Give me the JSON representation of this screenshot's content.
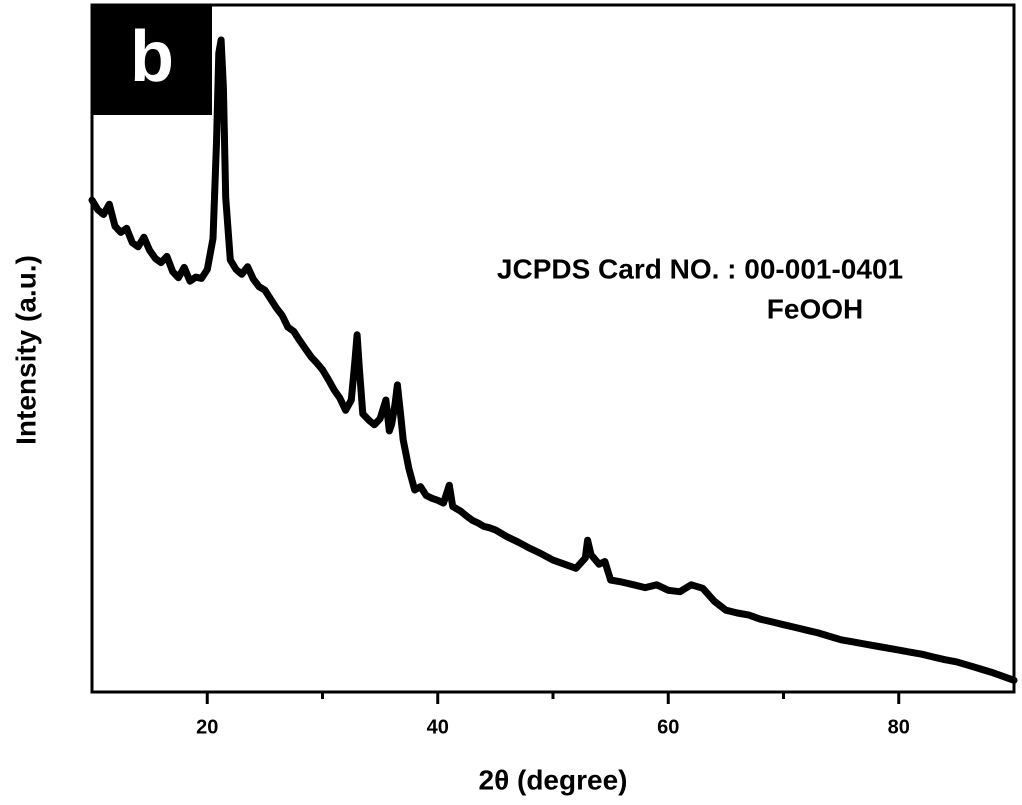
{
  "chart_data": {
    "type": "line",
    "panel_label": "b",
    "xlabel": "2θ (degree)",
    "ylabel": "Intensity (a.u.)",
    "annotations": [
      "JCPDS Card NO. : 00-001-0401",
      "FeOOH"
    ],
    "xlim": [
      10,
      90
    ],
    "xticks": [
      20,
      40,
      60,
      80
    ],
    "x_minor_ticks": [
      30,
      50,
      70
    ],
    "ylim": [
      0,
      100
    ],
    "color": "#000000",
    "x": [
      10,
      10.5,
      11,
      11.5,
      12,
      12.5,
      13,
      13.5,
      14,
      14.5,
      15,
      15.5,
      16,
      16.5,
      17,
      17.5,
      18,
      18.5,
      19,
      19.5,
      20,
      20.5,
      20.8,
      21,
      21.2,
      21.4,
      21.6,
      22,
      22.5,
      23,
      23.5,
      24,
      24.5,
      25,
      25.5,
      26,
      26.5,
      27,
      27.5,
      28,
      28.5,
      29,
      29.5,
      30,
      30.5,
      31,
      31.5,
      32,
      32.5,
      32.8,
      33,
      33.2,
      33.5,
      34,
      34.5,
      35,
      35.5,
      35.8,
      36,
      36.3,
      36.5,
      36.8,
      37,
      37.5,
      38,
      38.5,
      39,
      39.5,
      40,
      40.5,
      41,
      41.3,
      42,
      42.5,
      43,
      43.5,
      44,
      44.5,
      45,
      46,
      47,
      48,
      49,
      50,
      51,
      52,
      52.8,
      53,
      53.3,
      54,
      54.5,
      55,
      56,
      57,
      58,
      59,
      60,
      61,
      62,
      63,
      64,
      65,
      66,
      67,
      68,
      69,
      70,
      71,
      72,
      73,
      74,
      75,
      76,
      77,
      78,
      79,
      80,
      81,
      82,
      83,
      84,
      85,
      86,
      87,
      88,
      89,
      90
    ],
    "values": [
      71.6,
      70.2,
      69.5,
      71.0,
      67.8,
      66.9,
      67.5,
      65.4,
      64.8,
      66.2,
      64.3,
      63.1,
      62.5,
      63.4,
      61.2,
      60.3,
      61.8,
      59.8,
      60.4,
      60.2,
      61.5,
      66.0,
      80.0,
      93.0,
      94.9,
      88.0,
      72.0,
      62.9,
      61.5,
      60.8,
      61.9,
      60.1,
      59.0,
      58.5,
      57.2,
      55.9,
      54.8,
      53.1,
      52.5,
      51.2,
      50.0,
      48.8,
      47.9,
      46.9,
      45.5,
      44.0,
      42.8,
      41.0,
      42.5,
      48.0,
      52.0,
      47.0,
      40.5,
      39.6,
      38.9,
      39.8,
      42.5,
      38.0,
      39.0,
      42.0,
      44.7,
      40.0,
      36.7,
      32.5,
      29.4,
      29.9,
      28.6,
      28.2,
      27.9,
      27.5,
      30.1,
      27.0,
      26.3,
      25.6,
      25.0,
      24.6,
      24.1,
      23.9,
      23.6,
      22.6,
      21.8,
      20.9,
      20.1,
      19.2,
      18.6,
      18.0,
      19.5,
      22.1,
      20.0,
      18.6,
      19.0,
      16.3,
      16.0,
      15.6,
      15.2,
      15.6,
      14.8,
      14.6,
      15.6,
      15.1,
      13.2,
      11.9,
      11.5,
      11.2,
      10.6,
      10.2,
      9.8,
      9.4,
      9.0,
      8.6,
      8.1,
      7.6,
      7.3,
      7.0,
      6.7,
      6.4,
      6.1,
      5.8,
      5.5,
      5.1,
      4.7,
      4.4,
      3.9,
      3.4,
      2.9,
      2.3,
      1.7
    ]
  }
}
